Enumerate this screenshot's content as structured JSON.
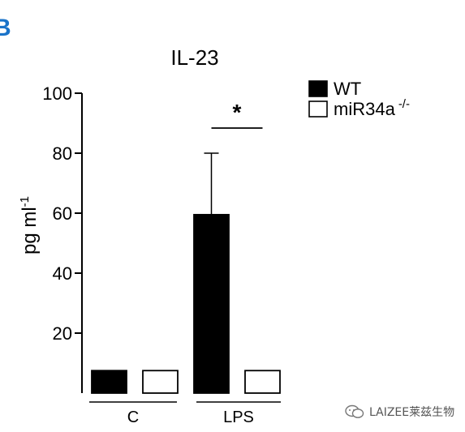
{
  "chart_data": {
    "type": "bar",
    "title": "IL-23",
    "panel_letter": "B",
    "ylabel_base": "pg ml",
    "ylabel_sup": "-1",
    "xlabel": "",
    "ylim": [
      0,
      100
    ],
    "yticks": [
      20,
      40,
      60,
      80,
      100
    ],
    "groups": [
      "C",
      "LPS"
    ],
    "series": [
      {
        "name": "WT",
        "legend_sup": "",
        "fill": "#000000",
        "values": [
          7.5,
          59.5
        ],
        "errors": [
          null,
          20.5
        ]
      },
      {
        "name": "miR34a",
        "legend_sup": "-/-",
        "fill": "#ffffff",
        "values": [
          7.5,
          7.5
        ],
        "errors": [
          null,
          null
        ]
      }
    ],
    "significance": {
      "group": "LPS",
      "label": "*"
    },
    "legend_position": "top-right",
    "grid": false
  },
  "watermark": {
    "text": "LAIZEE莱兹生物"
  }
}
